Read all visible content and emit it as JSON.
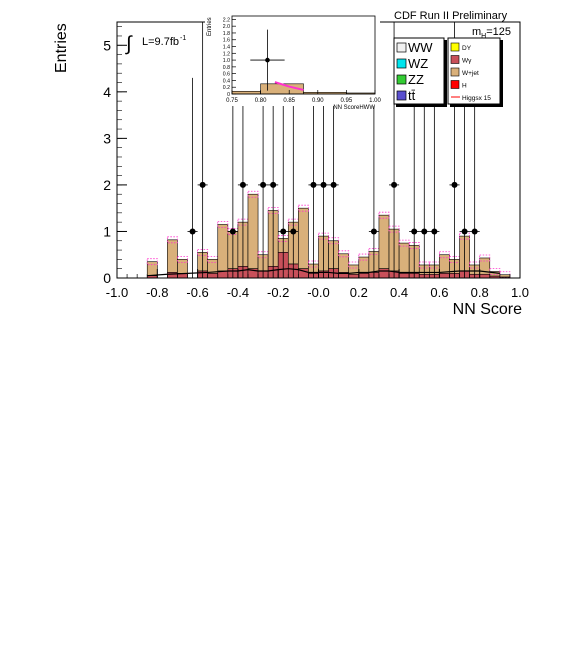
{
  "header": {
    "title": "CDF Run II Preliminary",
    "mass_label": "m",
    "mass_sub": "H",
    "mass_value": "=125",
    "lumi_integral": "∫",
    "lumi_text": "L=9.7fb",
    "lumi_sup": "-1"
  },
  "legend": {
    "left": [
      {
        "label": "WW",
        "color": "#f2f2f2"
      },
      {
        "label": "WZ",
        "color": "#00e5ee"
      },
      {
        "label": "ZZ",
        "color": "#33cc33"
      },
      {
        "label": "tt̄",
        "color": "#5a4fcf"
      }
    ],
    "right": [
      {
        "label": "DY",
        "color": "#ffff00"
      },
      {
        "label": "Wγ",
        "color": "#c8505a"
      },
      {
        "label": "W+jet",
        "color": "#d9b07a"
      },
      {
        "label": "H",
        "color": "#ff0000"
      },
      {
        "label": "Higgsx 15",
        "color": "#ff0000"
      }
    ]
  },
  "chart_data": [
    {
      "type": "bar",
      "xlabel": "NN Score",
      "ylabel": "Entries",
      "xlim": [
        -1.0,
        1.0
      ],
      "ylim": [
        0,
        5.5
      ],
      "xticks": [
        "-1.0",
        "-0.8",
        "-0.6",
        "-0.4",
        "-0.2",
        "-0.0",
        "0.2",
        "0.4",
        "0.6",
        "0.8",
        "1.0"
      ],
      "yticks": [
        "0",
        "1",
        "2",
        "3",
        "4",
        "5"
      ],
      "bin_width": 0.05,
      "series": [
        {
          "name": "W+jet",
          "color": "#d9b07a",
          "bin_lo": [
            -0.85,
            -0.75,
            -0.7,
            -0.6,
            -0.55,
            -0.5,
            -0.45,
            -0.4,
            -0.35,
            -0.3,
            -0.25,
            -0.2,
            -0.15,
            -0.1,
            -0.05,
            0.0,
            0.05,
            0.1,
            0.15,
            0.2,
            0.25,
            0.3,
            0.35,
            0.4,
            0.45,
            0.5,
            0.55,
            0.6,
            0.65,
            0.7,
            0.75,
            0.8,
            0.85,
            0.9
          ],
          "values": [
            0.3,
            0.7,
            0.3,
            0.4,
            0.3,
            1.0,
            0.8,
            0.95,
            1.6,
            0.35,
            1.2,
            0.3,
            0.9,
            1.3,
            0.2,
            0.75,
            0.6,
            0.4,
            0.2,
            0.35,
            0.45,
            1.15,
            0.9,
            0.65,
            0.6,
            0.2,
            0.2,
            0.4,
            0.3,
            0.75,
            0.2,
            0.35,
            0.1,
            0.05
          ]
        },
        {
          "name": "Wγ",
          "color": "#c8505a",
          "bin_lo": [
            -0.85,
            -0.75,
            -0.7,
            -0.6,
            -0.55,
            -0.5,
            -0.45,
            -0.4,
            -0.35,
            -0.3,
            -0.25,
            -0.2,
            -0.15,
            -0.1,
            -0.05,
            0.0,
            0.05,
            0.1,
            0.15,
            0.2,
            0.25,
            0.3,
            0.35,
            0.4,
            0.45,
            0.5,
            0.55,
            0.6,
            0.65,
            0.7,
            0.75,
            0.8,
            0.85,
            0.9
          ],
          "values": [
            0.05,
            0.12,
            0.1,
            0.15,
            0.1,
            0.15,
            0.2,
            0.25,
            0.2,
            0.15,
            0.25,
            0.55,
            0.3,
            0.2,
            0.1,
            0.15,
            0.2,
            0.12,
            0.08,
            0.1,
            0.12,
            0.2,
            0.15,
            0.1,
            0.1,
            0.08,
            0.08,
            0.1,
            0.1,
            0.15,
            0.08,
            0.08,
            0.04,
            0.02
          ]
        }
      ],
      "signal": {
        "name": "Higgsx 15",
        "x": [
          -0.85,
          -0.75,
          -0.65,
          -0.55,
          -0.45,
          -0.4,
          -0.35,
          -0.3,
          -0.25,
          -0.2,
          -0.15,
          -0.1,
          -0.05,
          0.0,
          0.05,
          0.1,
          0.15,
          0.2,
          0.25,
          0.3,
          0.35,
          0.4,
          0.5,
          0.6,
          0.7,
          0.8,
          0.9
        ],
        "y": [
          0.05,
          0.08,
          0.1,
          0.12,
          0.15,
          0.15,
          0.18,
          0.15,
          0.15,
          0.18,
          0.2,
          0.18,
          0.12,
          0.12,
          0.12,
          0.1,
          0.1,
          0.12,
          0.12,
          0.15,
          0.15,
          0.12,
          0.12,
          0.12,
          0.15,
          0.15,
          0.1
        ]
      },
      "observed": {
        "name": "Data",
        "x": [
          -0.625,
          -0.575,
          -0.425,
          -0.375,
          -0.275,
          -0.225,
          -0.175,
          -0.125,
          -0.025,
          0.025,
          0.075,
          0.275,
          0.375,
          0.475,
          0.525,
          0.575,
          0.675,
          0.725,
          0.775
        ],
        "y": [
          1,
          2,
          1,
          2,
          2,
          2,
          1,
          1,
          2,
          2,
          2,
          1,
          2,
          1,
          1,
          1,
          2,
          1,
          1
        ],
        "yerr": [
          3.3,
          3.6,
          3.3,
          3.6,
          3.6,
          3.6,
          3.3,
          3.3,
          3.6,
          3.6,
          3.6,
          3.3,
          3.6,
          3.3,
          3.3,
          3.3,
          3.6,
          3.3,
          3.3
        ]
      }
    },
    {
      "type": "bar",
      "name": "inset",
      "xlabel": "NN ScoreHWW",
      "ylabel": "Entries",
      "xlim": [
        0.75,
        1.0
      ],
      "ylim": [
        0,
        2.3
      ],
      "xticks": [
        "0.75",
        "0.80",
        "0.85",
        "0.90",
        "0.95",
        "1.00"
      ],
      "yticks": [
        "0",
        "0.2",
        "0.4",
        "0.6",
        "0.8",
        "1.0",
        "1.2",
        "1.4",
        "1.6",
        "1.8",
        "2.0",
        "2.2"
      ],
      "bins": [
        {
          "lo": 0.75,
          "hi": 0.8,
          "value": 0.08
        },
        {
          "lo": 0.8,
          "hi": 0.875,
          "value": 0.3
        },
        {
          "lo": 0.875,
          "hi": 0.95,
          "value": 0.05
        },
        {
          "lo": 0.95,
          "hi": 1.0,
          "value": 0.03
        }
      ],
      "signal": {
        "x": [
          0.825,
          0.85,
          0.875
        ],
        "y": [
          0.35,
          0.22,
          0.12
        ]
      },
      "observed": {
        "x": 0.812,
        "y": 1.0,
        "yerr": 0.9,
        "xerr": 0.03
      }
    }
  ]
}
